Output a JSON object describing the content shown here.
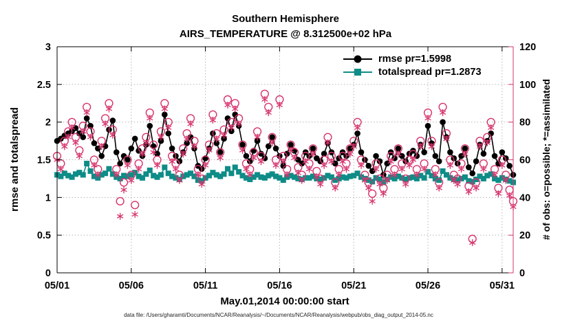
{
  "chart_data": {
    "type": "line",
    "title": "Southern Hemisphere",
    "subtitle": "AIRS_TEMPERATURE @ 8.312500e+02 hPa",
    "xlabel": "May.01,2014 00:00:00 start",
    "ylabel_left": "rmse and totalspread",
    "ylabel_right": "# of obs: o=possible; *=assimilated",
    "footer": "data file: /Users/gharamti/Documents/NCAR/Reanalysis/~/Documents/NCAR/Reanalysis/webpub/obs_diag_output_2014-05.nc",
    "ylim_left": [
      0,
      3
    ],
    "ylim_right": [
      0,
      120
    ],
    "yticks_left": [
      0,
      0.5,
      1,
      1.5,
      2,
      2.5,
      3
    ],
    "ytick_labels_left": [
      "0",
      "0.5",
      "1",
      "1.5",
      "2",
      "2.5",
      "3"
    ],
    "yticks_right": [
      0,
      20,
      40,
      60,
      80,
      100,
      120
    ],
    "xtick_positions": [
      0,
      20,
      40,
      60,
      80,
      100,
      120
    ],
    "xtick_labels": [
      "05/01",
      "05/06",
      "05/11",
      "05/16",
      "05/21",
      "05/26",
      "05/31"
    ],
    "grid": true,
    "colors": {
      "rmse": "#000000",
      "totalspread": "#0e8c87",
      "obs": "#d6336c"
    },
    "legend": [
      {
        "label": "rmse pr=1.5998",
        "color": "#000000",
        "marker": "circle"
      },
      {
        "label": "totalspread pr=1.2873",
        "color": "#0e8c87",
        "marker": "square"
      }
    ],
    "series": [
      {
        "name": "totalspread",
        "axis": "left",
        "marker": "square",
        "line": true,
        "color": "#0e8c87",
        "values": [
          1.3,
          1.28,
          1.32,
          1.29,
          1.27,
          1.31,
          1.33,
          1.3,
          1.45,
          1.35,
          1.28,
          1.26,
          1.3,
          1.32,
          1.38,
          1.31,
          1.27,
          1.25,
          1.29,
          1.28,
          1.3,
          1.33,
          1.28,
          1.26,
          1.31,
          1.36,
          1.29,
          1.27,
          1.3,
          1.4,
          1.32,
          1.28,
          1.26,
          1.24,
          1.28,
          1.3,
          1.32,
          1.28,
          1.23,
          1.22,
          1.26,
          1.29,
          1.33,
          1.3,
          1.28,
          1.31,
          1.38,
          1.32,
          1.4,
          1.34,
          1.29,
          1.26,
          1.24,
          1.27,
          1.3,
          1.27,
          1.26,
          1.29,
          1.31,
          1.28,
          1.26,
          1.23,
          1.27,
          1.29,
          1.27,
          1.25,
          1.24,
          1.26,
          1.26,
          1.28,
          1.25,
          1.24,
          1.26,
          1.29,
          1.27,
          1.23,
          1.25,
          1.27,
          1.26,
          1.28,
          1.29,
          1.32,
          1.27,
          1.25,
          1.23,
          1.21,
          1.26,
          1.24,
          1.2,
          1.24,
          1.27,
          1.25,
          1.28,
          1.26,
          1.24,
          1.26,
          1.27,
          1.25,
          1.29,
          1.26,
          1.34,
          1.29,
          1.25,
          1.23,
          1.35,
          1.3,
          1.26,
          1.24,
          1.23,
          1.25,
          1.27,
          1.22,
          1.21,
          1.24,
          1.28,
          1.25,
          1.29,
          1.31,
          1.25,
          1.23,
          1.26,
          1.24,
          1.22,
          1.2
        ]
      },
      {
        "name": "rmse",
        "axis": "left",
        "marker": "circle",
        "line": true,
        "color": "#000000",
        "values": [
          1.75,
          1.78,
          1.82,
          1.85,
          1.88,
          1.92,
          1.85,
          1.8,
          2.05,
          1.95,
          1.72,
          1.65,
          1.55,
          1.68,
          1.9,
          2.02,
          1.6,
          1.45,
          1.55,
          1.5,
          1.65,
          1.78,
          1.62,
          1.55,
          1.7,
          1.95,
          1.68,
          1.58,
          1.75,
          2.1,
          1.85,
          1.65,
          1.55,
          1.48,
          1.6,
          1.72,
          1.8,
          1.65,
          1.42,
          1.38,
          1.52,
          1.65,
          1.85,
          1.72,
          1.6,
          1.78,
          2.05,
          1.88,
          2.1,
          1.95,
          1.7,
          1.55,
          1.48,
          1.62,
          1.75,
          1.58,
          1.52,
          1.68,
          1.8,
          1.65,
          1.55,
          1.42,
          1.58,
          1.7,
          1.62,
          1.5,
          1.45,
          1.6,
          1.55,
          1.65,
          1.52,
          1.48,
          1.58,
          1.72,
          1.6,
          1.45,
          1.52,
          1.6,
          1.55,
          1.65,
          1.7,
          1.85,
          1.6,
          1.5,
          1.42,
          1.35,
          1.55,
          1.48,
          1.3,
          1.45,
          1.6,
          1.52,
          1.65,
          1.55,
          1.48,
          1.58,
          1.62,
          1.55,
          1.7,
          1.6,
          1.95,
          1.72,
          1.55,
          1.48,
          2.0,
          1.8,
          1.6,
          1.52,
          1.45,
          1.55,
          1.65,
          1.4,
          1.32,
          1.48,
          1.7,
          1.58,
          1.75,
          1.85,
          1.55,
          1.45,
          1.6,
          1.52,
          1.42,
          1.3
        ]
      },
      {
        "name": "possible",
        "axis": "right",
        "marker": "open-circle",
        "line": false,
        "color": "#d6336c",
        "values": [
          62,
          58,
          70,
          75,
          80,
          72,
          65,
          78,
          88,
          75,
          60,
          55,
          70,
          82,
          90,
          76,
          55,
          38,
          48,
          60,
          52,
          36,
          58,
          66,
          72,
          85,
          68,
          60,
          75,
          90,
          80,
          62,
          58,
          52,
          66,
          74,
          82,
          70,
          55,
          50,
          60,
          68,
          84,
          74,
          64,
          76,
          92,
          80,
          90,
          82,
          68,
          58,
          55,
          64,
          75,
          62,
          95,
          88,
          72,
          60,
          92,
          62,
          55,
          68,
          64,
          56,
          52,
          62,
          58,
          66,
          54,
          50,
          60,
          72,
          62,
          48,
          55,
          62,
          58,
          66,
          70,
          80,
          60,
          52,
          48,
          42,
          58,
          50,
          45,
          52,
          62,
          55,
          66,
          58,
          50,
          60,
          63,
          55,
          70,
          58,
          85,
          70,
          55,
          48,
          88,
          74,
          60,
          52,
          50,
          58,
          66,
          46,
          18,
          48,
          70,
          58,
          72,
          80,
          55,
          45,
          60,
          52,
          44,
          38
        ]
      },
      {
        "name": "assimilated",
        "axis": "right",
        "marker": "asterisk",
        "line": false,
        "color": "#d6336c",
        "values": [
          60,
          55,
          67,
          72,
          77,
          69,
          62,
          75,
          85,
          72,
          57,
          52,
          67,
          79,
          87,
          73,
          52,
          30,
          44,
          57,
          49,
          31,
          55,
          63,
          69,
          82,
          64,
          57,
          72,
          87,
          77,
          59,
          55,
          49,
          63,
          71,
          79,
          67,
          52,
          47,
          57,
          65,
          81,
          71,
          61,
          73,
          89,
          77,
          87,
          79,
          65,
          55,
          52,
          61,
          72,
          59,
          92,
          85,
          69,
          57,
          89,
          59,
          52,
          65,
          61,
          53,
          49,
          59,
          55,
          63,
          51,
          47,
          57,
          69,
          59,
          45,
          52,
          59,
          55,
          63,
          67,
          77,
          57,
          49,
          45,
          38,
          55,
          47,
          42,
          49,
          59,
          52,
          63,
          55,
          47,
          57,
          60,
          52,
          67,
          55,
          82,
          67,
          52,
          45,
          85,
          71,
          57,
          49,
          47,
          55,
          63,
          43,
          16,
          45,
          67,
          55,
          69,
          77,
          52,
          42,
          57,
          49,
          41,
          35
        ]
      }
    ]
  }
}
